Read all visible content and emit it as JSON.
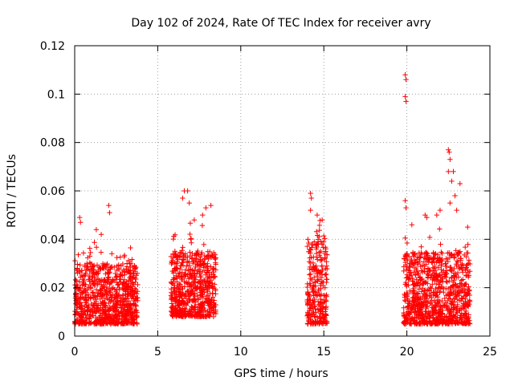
{
  "chart_data": {
    "type": "scatter",
    "title": "Day 102 of 2024, Rate Of TEC Index for receiver avry",
    "xlabel": "GPS time / hours",
    "ylabel": "ROTI / TECUs",
    "xlim": [
      0,
      25
    ],
    "ylim": [
      0,
      0.12
    ],
    "x_ticks": [
      0,
      5,
      10,
      15,
      20,
      25
    ],
    "x_tick_labels": [
      "0",
      "5",
      "10",
      "15",
      "20",
      "25"
    ],
    "y_ticks": [
      0,
      0.02,
      0.04,
      0.06,
      0.08,
      0.1,
      0.12
    ],
    "y_tick_labels": [
      "0",
      "0.02",
      "0.04",
      "0.06",
      "0.08",
      "0.1",
      "0.12"
    ],
    "grid": true,
    "marker": "+",
    "color": "#ff0000",
    "series": [
      {
        "name": "ROTI",
        "clusters": [
          {
            "x_range": [
              0.0,
              3.8
            ],
            "typical_range": [
              0.005,
              0.03
            ]
          },
          {
            "x_range": [
              5.8,
              8.5
            ],
            "typical_range": [
              0.008,
              0.035
            ]
          },
          {
            "x_range": [
              14.0,
              15.2
            ],
            "typical_range": [
              0.005,
              0.04
            ]
          },
          {
            "x_range": [
              19.8,
              23.8
            ],
            "typical_range": [
              0.005,
              0.035
            ]
          }
        ],
        "notable_points": [
          {
            "x": 0.3,
            "y": 0.049
          },
          {
            "x": 0.35,
            "y": 0.047
          },
          {
            "x": 2.05,
            "y": 0.054
          },
          {
            "x": 2.1,
            "y": 0.051
          },
          {
            "x": 1.3,
            "y": 0.044
          },
          {
            "x": 1.6,
            "y": 0.042
          },
          {
            "x": 6.6,
            "y": 0.06
          },
          {
            "x": 6.8,
            "y": 0.06
          },
          {
            "x": 6.5,
            "y": 0.057
          },
          {
            "x": 7.2,
            "y": 0.048
          },
          {
            "x": 7.7,
            "y": 0.05
          },
          {
            "x": 7.9,
            "y": 0.053
          },
          {
            "x": 8.2,
            "y": 0.054
          },
          {
            "x": 6.9,
            "y": 0.055
          },
          {
            "x": 14.2,
            "y": 0.059
          },
          {
            "x": 14.25,
            "y": 0.057
          },
          {
            "x": 14.2,
            "y": 0.052
          },
          {
            "x": 14.6,
            "y": 0.05
          },
          {
            "x": 14.9,
            "y": 0.048
          },
          {
            "x": 19.9,
            "y": 0.108
          },
          {
            "x": 19.95,
            "y": 0.106
          },
          {
            "x": 19.9,
            "y": 0.099
          },
          {
            "x": 19.95,
            "y": 0.097
          },
          {
            "x": 19.9,
            "y": 0.056
          },
          {
            "x": 19.95,
            "y": 0.053
          },
          {
            "x": 20.3,
            "y": 0.046
          },
          {
            "x": 21.1,
            "y": 0.05
          },
          {
            "x": 21.2,
            "y": 0.049
          },
          {
            "x": 21.8,
            "y": 0.05
          },
          {
            "x": 22.0,
            "y": 0.052
          },
          {
            "x": 22.5,
            "y": 0.077
          },
          {
            "x": 22.55,
            "y": 0.076
          },
          {
            "x": 22.6,
            "y": 0.073
          },
          {
            "x": 22.5,
            "y": 0.068
          },
          {
            "x": 22.8,
            "y": 0.068
          },
          {
            "x": 22.7,
            "y": 0.064
          },
          {
            "x": 23.2,
            "y": 0.063
          },
          {
            "x": 22.9,
            "y": 0.058
          },
          {
            "x": 22.6,
            "y": 0.055
          },
          {
            "x": 23.0,
            "y": 0.052
          }
        ]
      }
    ]
  }
}
